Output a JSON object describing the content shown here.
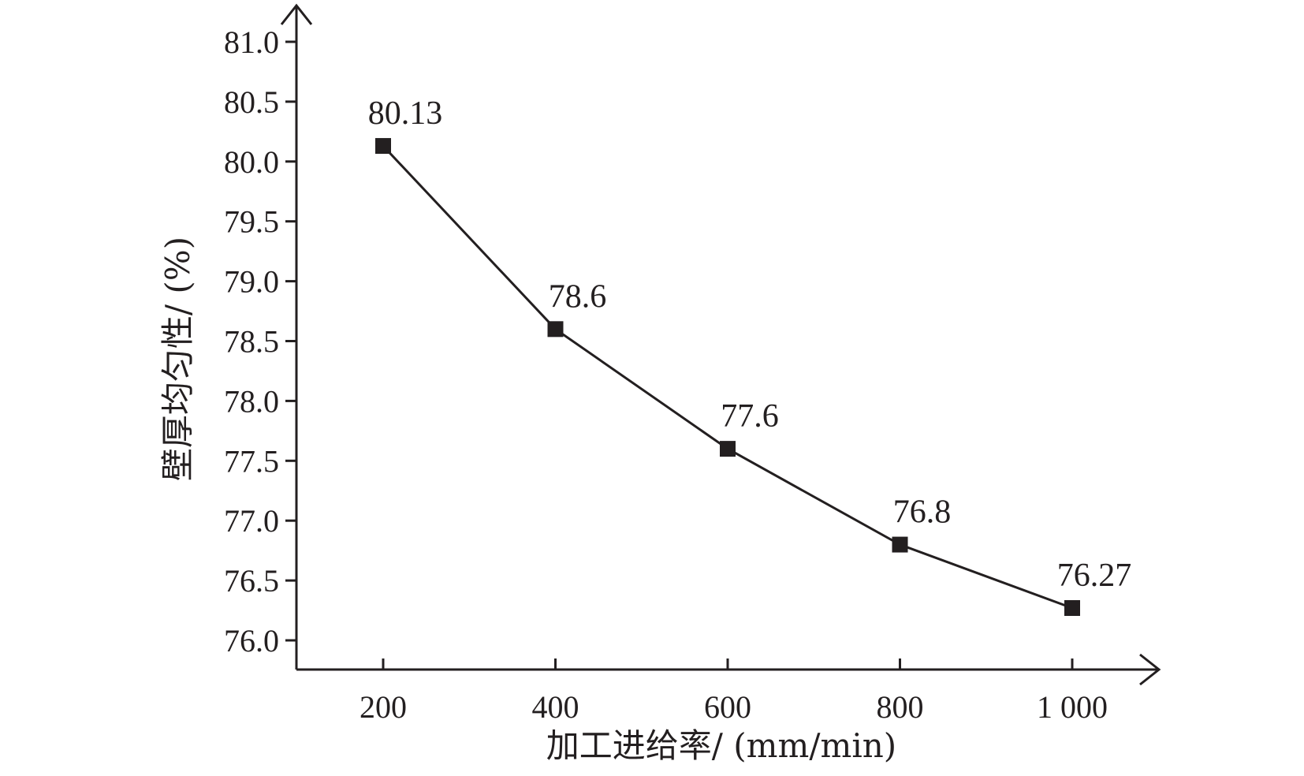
{
  "chart_data": {
    "type": "line",
    "x": [
      200,
      400,
      600,
      800,
      1000
    ],
    "x_tick_labels": [
      "200",
      "400",
      "600",
      "800",
      "1 000"
    ],
    "y_ticks": [
      "76.0",
      "76.5",
      "77.0",
      "77.5",
      "78.0",
      "78.5",
      "79.0",
      "79.5",
      "80.0",
      "80.5",
      "81.0"
    ],
    "ylim": [
      76.0,
      81.0
    ],
    "series": [
      {
        "values": [
          80.13,
          78.6,
          77.6,
          76.8,
          76.27
        ],
        "data_labels": [
          "80.13",
          "78.6",
          "77.6",
          "76.8",
          "76.27"
        ],
        "marker": "square",
        "color": "#231f20"
      }
    ],
    "xlabel": "加工进给率/ (mm/min)",
    "ylabel": "壁厚均匀性/ (%)",
    "grid": false
  }
}
